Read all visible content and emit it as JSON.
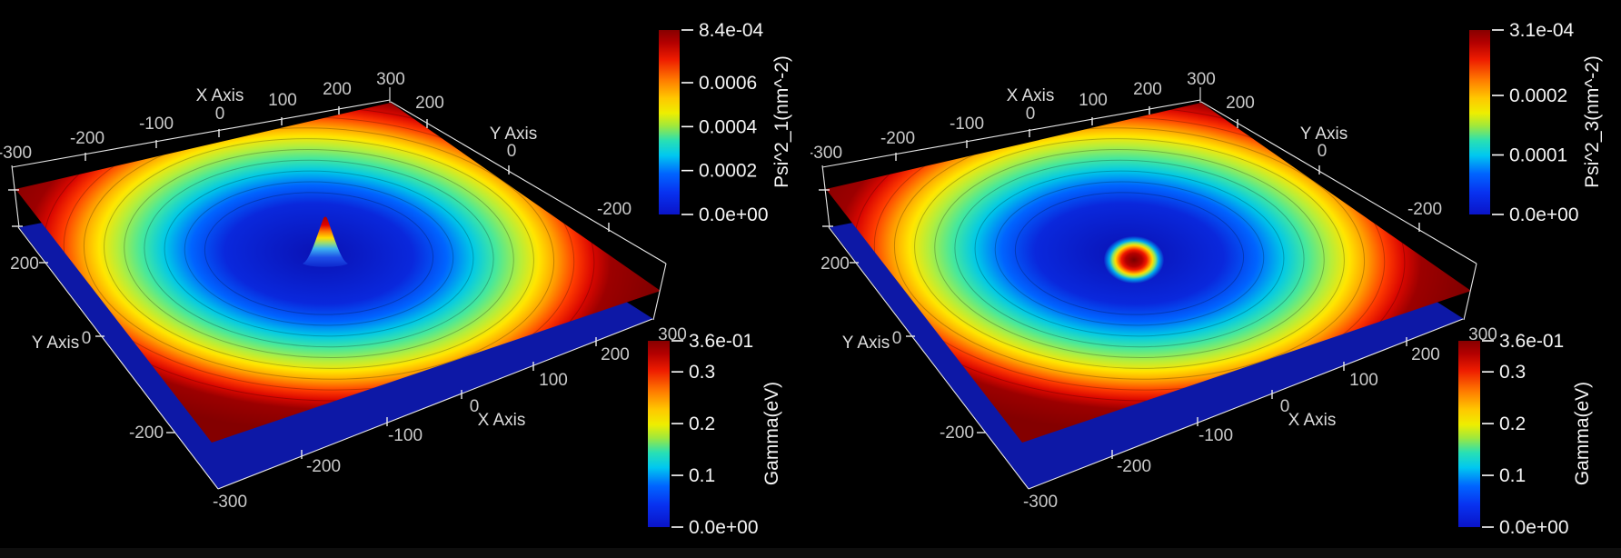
{
  "app": {
    "background": "#000000",
    "type": "3d-render-viewports"
  },
  "views": [
    {
      "name": "left-render-view",
      "feature": "peak",
      "axes": {
        "top_x": {
          "title": "X Axis",
          "ticks": [
            "-300",
            "-200",
            "-100",
            "0",
            "100",
            "200",
            "300"
          ]
        },
        "right_y": {
          "title": "Y Axis",
          "ticks": [
            "200",
            "0",
            "-200"
          ]
        },
        "left_y": {
          "title": "Y Axis",
          "ticks": [
            "200",
            "0",
            "-200"
          ]
        },
        "bottom_x": {
          "title": "X Axis",
          "ticks": [
            "-300",
            "-200",
            "-100",
            "0",
            "100",
            "200",
            "300"
          ]
        }
      },
      "colorbars": [
        {
          "title": "Psi^2_1(nm^-2)",
          "max": 0.00084,
          "ticks": [
            {
              "value": 0.00084,
              "label": "8.4e-04"
            },
            {
              "value": 0.0006,
              "label": "0.0006"
            },
            {
              "value": 0.0004,
              "label": "0.0004"
            },
            {
              "value": 0.0002,
              "label": "0.0002"
            },
            {
              "value": 0,
              "label": "0.0e+00"
            }
          ]
        },
        {
          "title": "Gamma(eV)",
          "max": 0.36,
          "ticks": [
            {
              "value": 0.36,
              "label": "3.6e-01"
            },
            {
              "value": 0.3,
              "label": "0.3"
            },
            {
              "value": 0.2,
              "label": "0.2"
            },
            {
              "value": 0.1,
              "label": "0.1"
            },
            {
              "value": 0,
              "label": "0.0e+00"
            }
          ]
        }
      ]
    },
    {
      "name": "right-render-view",
      "feature": "donut",
      "axes": {
        "top_x": {
          "title": "X Axis",
          "ticks": [
            "-300",
            "-200",
            "-100",
            "0",
            "100",
            "200",
            "300"
          ]
        },
        "right_y": {
          "title": "Y Axis",
          "ticks": [
            "200",
            "0",
            "-200"
          ]
        },
        "left_y": {
          "title": "Y Axis",
          "ticks": [
            "200",
            "0",
            "-200"
          ]
        },
        "bottom_x": {
          "title": "X Axis",
          "ticks": [
            "-300",
            "-200",
            "-100",
            "0",
            "100",
            "200",
            "300"
          ]
        }
      },
      "colorbars": [
        {
          "title": "Psi^2_3(nm^-2)",
          "max": 0.00031,
          "ticks": [
            {
              "value": 0.00031,
              "label": "3.1e-04"
            },
            {
              "value": 0.0002,
              "label": "0.0002"
            },
            {
              "value": 0.0001,
              "label": "0.0001"
            },
            {
              "value": 0,
              "label": "0.0e+00"
            }
          ]
        },
        {
          "title": "Gamma(eV)",
          "max": 0.36,
          "ticks": [
            {
              "value": 0.36,
              "label": "3.6e-01"
            },
            {
              "value": 0.3,
              "label": "0.3"
            },
            {
              "value": 0.2,
              "label": "0.2"
            },
            {
              "value": 0.1,
              "label": "0.1"
            },
            {
              "value": 0,
              "label": "0.0e+00"
            }
          ]
        }
      ]
    }
  ],
  "chart_data": [
    {
      "type": "heatmap",
      "title": "",
      "view": "left",
      "xlabel": "X Axis",
      "ylabel": "Y Axis",
      "xlim": [
        -300,
        300
      ],
      "ylim": [
        -300,
        300
      ],
      "x_ticks": [
        -300,
        -200,
        -100,
        0,
        100,
        200,
        300
      ],
      "y_ticks": [
        -200,
        0,
        200
      ],
      "colormap": "rainbow-jet (blue low to dark red high)",
      "grid": false,
      "legend_position": "right colorbars",
      "series": [
        {
          "name": "Psi^2_1(nm^-2)",
          "zlim": [
            0,
            0.00084
          ],
          "description": "sharp Gaussian-like peak at origin (red tip at max 8.4e-04) rising from a blue basin"
        },
        {
          "name": "Gamma(eV)",
          "zlim": [
            0,
            0.36
          ],
          "description": "3D surface with radial bullseye coloring: blue (low) at center through cyan/green/yellow/orange to dark red (0.36) toward the square boundary; a flat dark-blue plane lies beneath the surface"
        }
      ]
    },
    {
      "type": "heatmap",
      "title": "",
      "view": "right",
      "xlabel": "X Axis",
      "ylabel": "Y Axis",
      "xlim": [
        -300,
        300
      ],
      "ylim": [
        -300,
        300
      ],
      "x_ticks": [
        -300,
        -200,
        -100,
        0,
        100,
        200,
        300
      ],
      "y_ticks": [
        -200,
        0,
        200
      ],
      "colormap": "rainbow-jet (blue low to dark red high)",
      "grid": false,
      "legend_position": "right colorbars",
      "series": [
        {
          "name": "Psi^2_3(nm^-2)",
          "zlim": [
            0,
            0.00031
          ],
          "description": "ring / donut-shaped peak at origin (node at center, red rim at max 3.1e-04) rising from a blue basin"
        },
        {
          "name": "Gamma(eV)",
          "zlim": [
            0,
            0.36
          ],
          "description": "3D surface with radial bullseye coloring: blue (low) at center through cyan/green/yellow/orange to dark red (0.36) toward the square boundary; a flat dark-blue plane lies beneath the surface"
        }
      ]
    }
  ]
}
